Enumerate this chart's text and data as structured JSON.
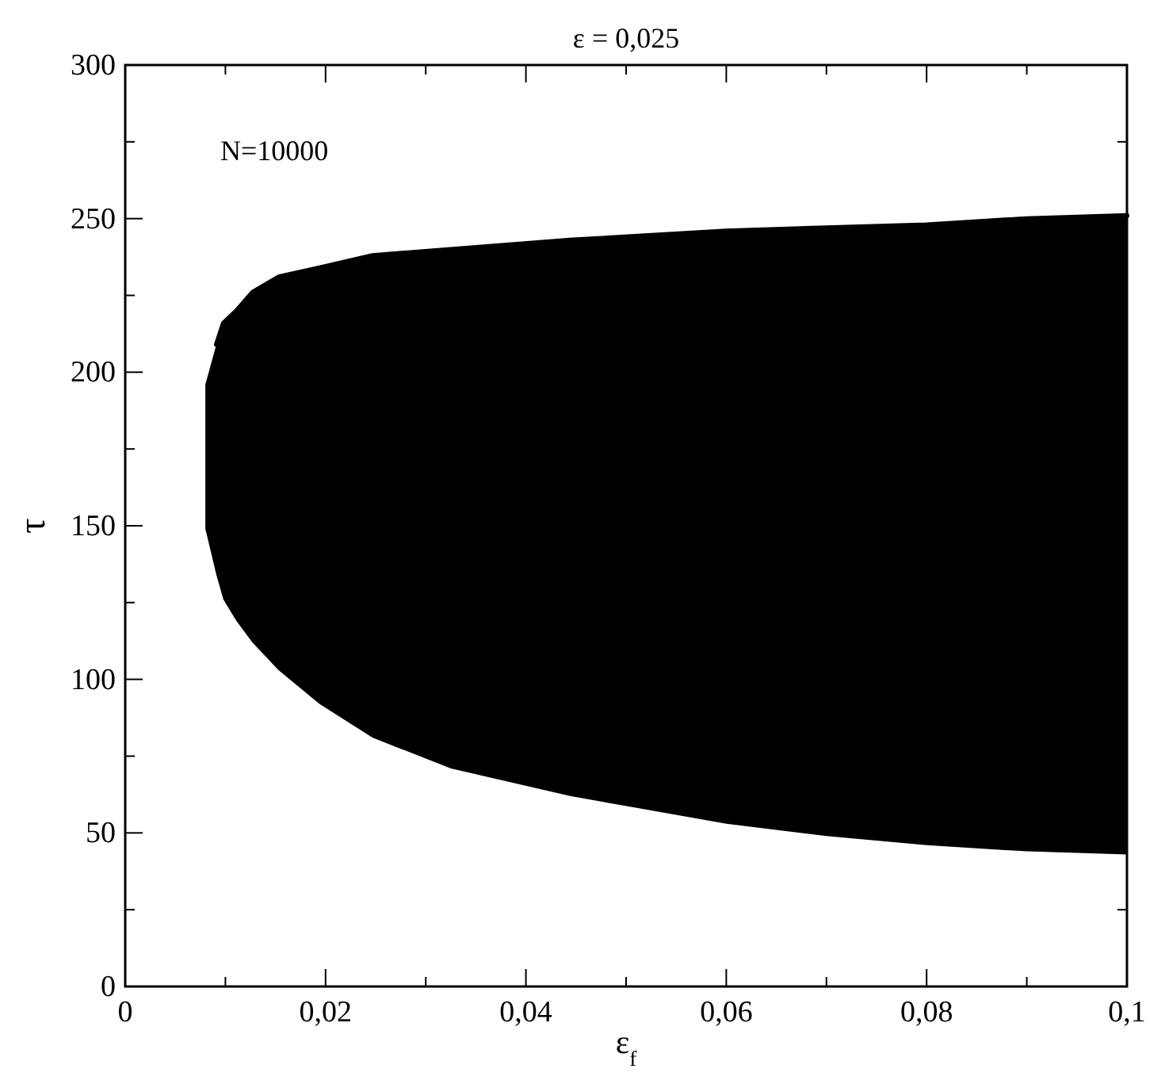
{
  "chart_data": {
    "type": "line",
    "title": "ε = 0,025",
    "xlabel": "ε$_{f}$",
    "ylabel": "τ",
    "annotations": [
      "N=10000"
    ],
    "series": [
      {
        "color": "#000000",
        "x": [
          0.008,
          0.0091,
          0.0098,
          0.0111,
          0.0127,
          0.0153,
          0.0194,
          0.0247,
          0.0325,
          0.0444,
          0.06,
          0.07,
          0.08,
          0.09,
          0.1
        ],
        "values": [
          null,
          209,
          216,
          220,
          226,
          231,
          234,
          238,
          240,
          243,
          246,
          247,
          248,
          250,
          251
        ],
        "lower": [
          149,
          134,
          126,
          119,
          112,
          103,
          92,
          81,
          71,
          62,
          53,
          49,
          46,
          44,
          43
        ],
        "upper": [
          196,
          209,
          216,
          220,
          226,
          231,
          234,
          238,
          240,
          243,
          246,
          247,
          248,
          250,
          251
        ]
      }
    ],
    "xlim": [
      0,
      0.1
    ],
    "xticks": [
      0,
      {
        "value": 0.01,
        "label": null
      },
      {
        "value": 0.02,
        "label": "0,02"
      },
      {
        "value": 0.03,
        "label": null
      },
      {
        "value": 0.04,
        "label": "0,04"
      },
      {
        "value": 0.05,
        "label": null
      },
      {
        "value": 0.06,
        "label": "0,06"
      },
      {
        "value": 0.07,
        "label": null
      },
      {
        "value": 0.08,
        "label": "0,08"
      },
      {
        "value": 0.09,
        "label": null
      },
      {
        "value": 0.1,
        "label": "0,1"
      }
    ],
    "ylim": [
      0,
      300
    ],
    "yticks": [
      0,
      {
        "value": 25,
        "label": null
      },
      50,
      {
        "value": 75,
        "label": null
      },
      100,
      {
        "value": 125,
        "label": null
      },
      150,
      {
        "value": 175,
        "label": null
      },
      200,
      {
        "value": 225,
        "label": null
      },
      250,
      {
        "value": 275,
        "label": null
      },
      300
    ],
    "grid": false
  }
}
